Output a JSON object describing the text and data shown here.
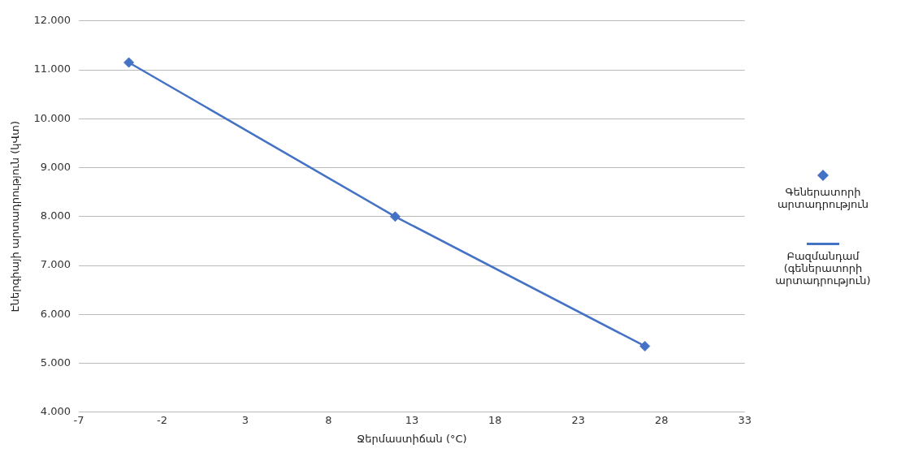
{
  "chart_data": {
    "type": "scatter",
    "xlabel": "Ջերմաստիճան (°C)",
    "ylabel": "Էներգիայի արտադրություն (կՎտ)",
    "xlim": [
      -7,
      33
    ],
    "xticks": [
      -7,
      -2,
      3,
      8,
      13,
      18,
      23,
      28,
      33
    ],
    "ylim": [
      4000,
      12000
    ],
    "yticks": [
      {
        "value": 4000,
        "label": "4.000"
      },
      {
        "value": 5000,
        "label": "5.000"
      },
      {
        "value": 6000,
        "label": "6.000"
      },
      {
        "value": 7000,
        "label": "7.000"
      },
      {
        "value": 8000,
        "label": "8.000"
      },
      {
        "value": 9000,
        "label": "9.000"
      },
      {
        "value": 10000,
        "label": "10.000"
      },
      {
        "value": 11000,
        "label": "11.000"
      },
      {
        "value": 12000,
        "label": "12.000"
      }
    ],
    "grid": "y",
    "legend": "right",
    "series": [
      {
        "name": "Գեներատորի արտադրություն",
        "marker": "diamond",
        "color": "#4472c4",
        "x": [
          -4,
          12,
          27
        ],
        "values": [
          11150,
          8000,
          5350
        ]
      },
      {
        "name": "Բազմանդամ (գեներատորի արտադրություն)",
        "type": "line",
        "marker": "none",
        "color": "#4472c4",
        "x": [
          -4,
          12,
          27
        ],
        "values": [
          11150,
          8000,
          5350
        ]
      }
    ]
  }
}
